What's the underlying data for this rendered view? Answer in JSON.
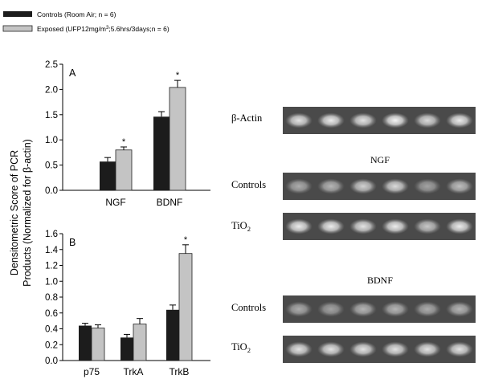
{
  "legend": {
    "items": [
      {
        "label": "Controls (Room Air; n = 6)",
        "color": "#1c1c1c"
      },
      {
        "label_pre": "Exposed (UFP12mg/m",
        "label_sup": "3",
        "label_post": ";5.6hrs/3days;n = 6)",
        "color": "#c4c4c4"
      }
    ]
  },
  "y_axis_label_line1": "Densitometric Score of PCR",
  "y_axis_label_line2": "Products (Normalized for β-actin)",
  "chart_data": [
    {
      "type": "bar",
      "panel_label": "A",
      "categories": [
        "NGF",
        "BDNF"
      ],
      "series": [
        {
          "name": "Controls",
          "values": [
            0.57,
            1.46
          ],
          "errors": [
            0.08,
            0.1
          ]
        },
        {
          "name": "Exposed",
          "values": [
            0.8,
            2.04
          ],
          "errors": [
            0.06,
            0.14
          ]
        }
      ],
      "significance": [
        "*",
        "*"
      ],
      "significance_on": "Exposed",
      "ylim": [
        0,
        2.5
      ],
      "yticks": [
        "0.0",
        "0.5",
        "1.0",
        "1.5",
        "2.0",
        "2.5"
      ],
      "ytick_values": [
        0,
        0.5,
        1.0,
        1.5,
        2.0,
        2.5
      ]
    },
    {
      "type": "bar",
      "panel_label": "B",
      "categories": [
        "p75",
        "TrkA",
        "TrkB"
      ],
      "series": [
        {
          "name": "Controls",
          "values": [
            0.44,
            0.29,
            0.64
          ],
          "errors": [
            0.03,
            0.04,
            0.06
          ]
        },
        {
          "name": "Exposed",
          "values": [
            0.41,
            0.46,
            1.35
          ],
          "errors": [
            0.04,
            0.07,
            0.11
          ]
        }
      ],
      "significance": [
        "",
        "",
        "*"
      ],
      "significance_on": "Exposed",
      "ylim": [
        0,
        1.6
      ],
      "yticks": [
        "0.0",
        "0.2",
        "0.4",
        "0.6",
        "0.8",
        "1.0",
        "1.2",
        "1.4",
        "1.6"
      ],
      "ytick_values": [
        0,
        0.2,
        0.4,
        0.6,
        0.8,
        1.0,
        1.2,
        1.4,
        1.6
      ]
    }
  ],
  "gel": {
    "lanes_per_row": 6,
    "labels": {
      "beta_actin": "β-Actin",
      "ngf_title": "NGF",
      "bdnf_title": "BDNF",
      "controls_1": "Controls",
      "tio2_1_base": "TiO",
      "tio2_1_sub": "2",
      "controls_2": "Controls",
      "tio2_2_base": "TiO",
      "tio2_2_sub": "2"
    },
    "row_intensity": [
      [
        0.85,
        0.9,
        0.85,
        0.95,
        0.8,
        0.9
      ],
      [
        0.55,
        0.6,
        0.75,
        0.8,
        0.5,
        0.65
      ],
      [
        0.9,
        0.9,
        0.85,
        0.9,
        0.7,
        0.9
      ],
      [
        0.55,
        0.5,
        0.6,
        0.6,
        0.55,
        0.6
      ],
      [
        0.85,
        0.85,
        0.85,
        0.85,
        0.85,
        0.85
      ]
    ]
  }
}
